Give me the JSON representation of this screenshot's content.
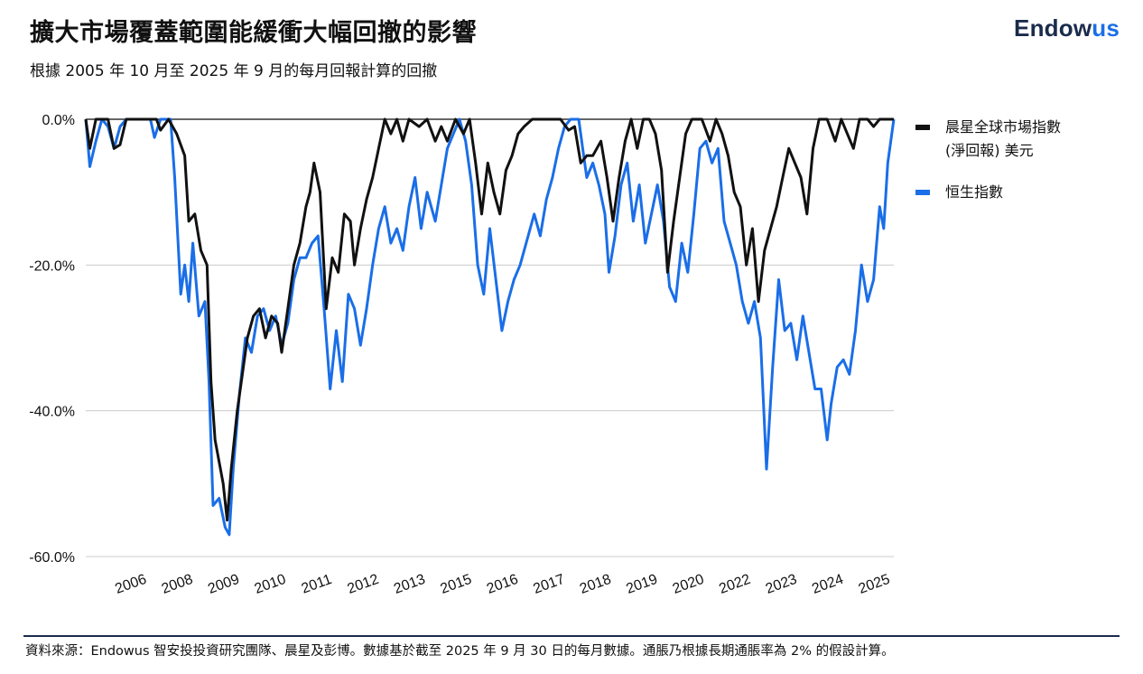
{
  "header": {
    "title": "擴大市場覆蓋範圍能緩衝大幅回撤的影響",
    "subtitle": "根據 2005 年 10 月至 2025 年 9 月的每月回報計算的回撤",
    "logo_main": "Endow",
    "logo_accent": "us"
  },
  "colors": {
    "series_global": "#111111",
    "series_hsi": "#1a6ee8",
    "gridline": "#cccccc",
    "logo_navy": "#1a2b4c"
  },
  "legend": {
    "global_line1": "晨星全球市場指數",
    "global_line2": "(淨回報) 美元",
    "hsi": "恒生指數"
  },
  "footer": {
    "source": "資料來源：Endowus 智安投投資研究團隊、晨星及彭博。數據基於截至 2025 年 9 月 30 日的每月數據。通脹乃根據長期通脹率為 2% 的假設計算。"
  },
  "chart_data": {
    "type": "line",
    "title": "擴大市場覆蓋範圍能緩衝大幅回撤的影響",
    "xlabel": "",
    "ylabel": "",
    "xlim": [
      2005.75,
      2025.75
    ],
    "ylim": [
      -60,
      0
    ],
    "y_ticks": [
      0,
      -20,
      -40,
      -60
    ],
    "y_tick_labels": [
      "0.0%",
      "-20.0%",
      "-40.0%",
      "-60.0%"
    ],
    "x_tick_labels": [
      "2006",
      "2008",
      "2009",
      "2010",
      "2011",
      "2012",
      "2013",
      "2015",
      "2016",
      "2017",
      "2018",
      "2019",
      "2020",
      "2022",
      "2023",
      "2024",
      "2025"
    ],
    "x_tick_positions": [
      2006.9,
      2008.05,
      2009.2,
      2010.35,
      2011.5,
      2012.65,
      2013.8,
      2014.95,
      2016.1,
      2017.25,
      2018.4,
      2019.55,
      2020.7,
      2021.85,
      2023.0,
      2024.15,
      2025.3
    ],
    "grid": "horizontal",
    "legend_position": "right",
    "series": [
      {
        "name": "晨星全球市場指數 (淨回報) 美元",
        "color": "#111111",
        "points": [
          [
            2005.75,
            0
          ],
          [
            2005.85,
            -4
          ],
          [
            2006.0,
            0
          ],
          [
            2006.3,
            0
          ],
          [
            2006.45,
            -4
          ],
          [
            2006.6,
            -3.5
          ],
          [
            2006.75,
            0
          ],
          [
            2007.5,
            0
          ],
          [
            2007.6,
            -1.5
          ],
          [
            2007.8,
            0
          ],
          [
            2008.0,
            -2
          ],
          [
            2008.2,
            -5
          ],
          [
            2008.3,
            -14
          ],
          [
            2008.45,
            -13
          ],
          [
            2008.6,
            -18
          ],
          [
            2008.75,
            -20
          ],
          [
            2008.85,
            -36
          ],
          [
            2008.95,
            -44
          ],
          [
            2009.05,
            -47
          ],
          [
            2009.15,
            -50
          ],
          [
            2009.25,
            -55
          ],
          [
            2009.35,
            -48
          ],
          [
            2009.5,
            -40
          ],
          [
            2009.6,
            -36
          ],
          [
            2009.75,
            -30
          ],
          [
            2009.9,
            -27
          ],
          [
            2010.05,
            -26
          ],
          [
            2010.2,
            -30
          ],
          [
            2010.35,
            -27
          ],
          [
            2010.5,
            -28
          ],
          [
            2010.6,
            -32
          ],
          [
            2010.75,
            -26
          ],
          [
            2010.9,
            -20
          ],
          [
            2011.05,
            -17
          ],
          [
            2011.2,
            -12
          ],
          [
            2011.3,
            -10
          ],
          [
            2011.4,
            -6
          ],
          [
            2011.55,
            -10
          ],
          [
            2011.7,
            -26
          ],
          [
            2011.85,
            -19
          ],
          [
            2012.0,
            -21
          ],
          [
            2012.15,
            -13
          ],
          [
            2012.3,
            -14
          ],
          [
            2012.4,
            -20
          ],
          [
            2012.55,
            -15
          ],
          [
            2012.7,
            -11
          ],
          [
            2012.85,
            -8
          ],
          [
            2013.0,
            -4
          ],
          [
            2013.15,
            0
          ],
          [
            2013.3,
            -2
          ],
          [
            2013.45,
            0
          ],
          [
            2013.6,
            -3
          ],
          [
            2013.75,
            0
          ],
          [
            2014.0,
            -1
          ],
          [
            2014.2,
            0
          ],
          [
            2014.4,
            -3
          ],
          [
            2014.55,
            -1
          ],
          [
            2014.7,
            -3
          ],
          [
            2014.9,
            0
          ],
          [
            2015.1,
            -2
          ],
          [
            2015.25,
            0
          ],
          [
            2015.4,
            -6
          ],
          [
            2015.55,
            -13
          ],
          [
            2015.7,
            -6
          ],
          [
            2015.85,
            -10
          ],
          [
            2016.0,
            -13
          ],
          [
            2016.15,
            -7
          ],
          [
            2016.3,
            -5
          ],
          [
            2016.45,
            -2
          ],
          [
            2016.6,
            -1
          ],
          [
            2016.8,
            0
          ],
          [
            2017.5,
            0
          ],
          [
            2017.7,
            -1.5
          ],
          [
            2017.85,
            -1
          ],
          [
            2018.0,
            -6
          ],
          [
            2018.15,
            -5
          ],
          [
            2018.3,
            -5
          ],
          [
            2018.5,
            -3
          ],
          [
            2018.65,
            -8
          ],
          [
            2018.8,
            -14
          ],
          [
            2018.95,
            -8
          ],
          [
            2019.1,
            -3
          ],
          [
            2019.25,
            0
          ],
          [
            2019.4,
            -4
          ],
          [
            2019.55,
            0
          ],
          [
            2019.7,
            0
          ],
          [
            2019.85,
            -2
          ],
          [
            2020.0,
            -7
          ],
          [
            2020.15,
            -21
          ],
          [
            2020.3,
            -14
          ],
          [
            2020.45,
            -8
          ],
          [
            2020.6,
            -2
          ],
          [
            2020.75,
            0
          ],
          [
            2021.0,
            0
          ],
          [
            2021.2,
            -3
          ],
          [
            2021.35,
            0
          ],
          [
            2021.5,
            -2
          ],
          [
            2021.65,
            -5
          ],
          [
            2021.8,
            -10
          ],
          [
            2021.95,
            -12
          ],
          [
            2022.1,
            -20
          ],
          [
            2022.25,
            -15
          ],
          [
            2022.4,
            -25
          ],
          [
            2022.55,
            -18
          ],
          [
            2022.7,
            -15
          ],
          [
            2022.85,
            -12
          ],
          [
            2023.0,
            -8
          ],
          [
            2023.15,
            -4
          ],
          [
            2023.3,
            -6
          ],
          [
            2023.45,
            -8
          ],
          [
            2023.6,
            -13
          ],
          [
            2023.75,
            -4
          ],
          [
            2023.9,
            0
          ],
          [
            2024.1,
            0
          ],
          [
            2024.3,
            -3
          ],
          [
            2024.45,
            0
          ],
          [
            2024.6,
            -2
          ],
          [
            2024.75,
            -4
          ],
          [
            2024.9,
            0
          ],
          [
            2025.1,
            0
          ],
          [
            2025.25,
            -1
          ],
          [
            2025.4,
            0
          ],
          [
            2025.75,
            0
          ]
        ]
      },
      {
        "name": "恒生指數",
        "color": "#1a6ee8",
        "points": [
          [
            2005.75,
            0
          ],
          [
            2005.85,
            -6.5
          ],
          [
            2006.0,
            -3
          ],
          [
            2006.15,
            0
          ],
          [
            2006.3,
            -1
          ],
          [
            2006.45,
            -4
          ],
          [
            2006.6,
            -1
          ],
          [
            2006.75,
            0
          ],
          [
            2007.35,
            0
          ],
          [
            2007.45,
            -2.5
          ],
          [
            2007.6,
            0
          ],
          [
            2007.85,
            0
          ],
          [
            2007.95,
            -8
          ],
          [
            2008.1,
            -24
          ],
          [
            2008.2,
            -20
          ],
          [
            2008.3,
            -25
          ],
          [
            2008.4,
            -17
          ],
          [
            2008.55,
            -27
          ],
          [
            2008.7,
            -25
          ],
          [
            2008.8,
            -36
          ],
          [
            2008.9,
            -53
          ],
          [
            2009.05,
            -52
          ],
          [
            2009.2,
            -56
          ],
          [
            2009.3,
            -57
          ],
          [
            2009.4,
            -48
          ],
          [
            2009.55,
            -38
          ],
          [
            2009.7,
            -30
          ],
          [
            2009.85,
            -32
          ],
          [
            2010.0,
            -27
          ],
          [
            2010.15,
            -26
          ],
          [
            2010.3,
            -29
          ],
          [
            2010.45,
            -27
          ],
          [
            2010.6,
            -31
          ],
          [
            2010.75,
            -28
          ],
          [
            2010.9,
            -22
          ],
          [
            2011.05,
            -19
          ],
          [
            2011.2,
            -19
          ],
          [
            2011.35,
            -17
          ],
          [
            2011.5,
            -16
          ],
          [
            2011.65,
            -26
          ],
          [
            2011.8,
            -37
          ],
          [
            2011.95,
            -29
          ],
          [
            2012.1,
            -36
          ],
          [
            2012.25,
            -24
          ],
          [
            2012.4,
            -26
          ],
          [
            2012.55,
            -31
          ],
          [
            2012.7,
            -26
          ],
          [
            2012.85,
            -20
          ],
          [
            2013.0,
            -15
          ],
          [
            2013.15,
            -12
          ],
          [
            2013.3,
            -17
          ],
          [
            2013.45,
            -15
          ],
          [
            2013.6,
            -18
          ],
          [
            2013.75,
            -12
          ],
          [
            2013.9,
            -8
          ],
          [
            2014.05,
            -15
          ],
          [
            2014.2,
            -10
          ],
          [
            2014.4,
            -14
          ],
          [
            2014.55,
            -9
          ],
          [
            2014.7,
            -4
          ],
          [
            2014.85,
            -2
          ],
          [
            2015.0,
            0
          ],
          [
            2015.15,
            -3
          ],
          [
            2015.3,
            -9
          ],
          [
            2015.45,
            -20
          ],
          [
            2015.6,
            -24
          ],
          [
            2015.75,
            -15
          ],
          [
            2015.9,
            -22
          ],
          [
            2016.05,
            -29
          ],
          [
            2016.2,
            -25
          ],
          [
            2016.35,
            -22
          ],
          [
            2016.5,
            -20
          ],
          [
            2016.7,
            -16
          ],
          [
            2016.85,
            -13
          ],
          [
            2017.0,
            -16
          ],
          [
            2017.15,
            -11
          ],
          [
            2017.3,
            -8
          ],
          [
            2017.45,
            -4
          ],
          [
            2017.6,
            -1
          ],
          [
            2017.75,
            0
          ],
          [
            2017.95,
            0
          ],
          [
            2018.05,
            -4
          ],
          [
            2018.15,
            -8
          ],
          [
            2018.3,
            -6
          ],
          [
            2018.45,
            -9
          ],
          [
            2018.6,
            -13
          ],
          [
            2018.7,
            -21
          ],
          [
            2018.85,
            -16
          ],
          [
            2019.0,
            -9
          ],
          [
            2019.15,
            -6
          ],
          [
            2019.3,
            -14
          ],
          [
            2019.45,
            -9
          ],
          [
            2019.6,
            -17
          ],
          [
            2019.75,
            -13
          ],
          [
            2019.9,
            -9
          ],
          [
            2020.05,
            -14
          ],
          [
            2020.2,
            -23
          ],
          [
            2020.35,
            -25
          ],
          [
            2020.5,
            -17
          ],
          [
            2020.65,
            -21
          ],
          [
            2020.8,
            -13
          ],
          [
            2020.95,
            -4
          ],
          [
            2021.1,
            -3
          ],
          [
            2021.25,
            -6
          ],
          [
            2021.4,
            -4
          ],
          [
            2021.55,
            -14
          ],
          [
            2021.7,
            -17
          ],
          [
            2021.85,
            -20
          ],
          [
            2022.0,
            -25
          ],
          [
            2022.15,
            -28
          ],
          [
            2022.3,
            -25
          ],
          [
            2022.45,
            -30
          ],
          [
            2022.6,
            -48
          ],
          [
            2022.75,
            -34
          ],
          [
            2022.9,
            -22
          ],
          [
            2023.05,
            -29
          ],
          [
            2023.2,
            -28
          ],
          [
            2023.35,
            -33
          ],
          [
            2023.5,
            -27
          ],
          [
            2023.65,
            -32
          ],
          [
            2023.8,
            -37
          ],
          [
            2023.95,
            -37
          ],
          [
            2024.1,
            -44
          ],
          [
            2024.2,
            -39
          ],
          [
            2024.35,
            -34
          ],
          [
            2024.5,
            -33
          ],
          [
            2024.65,
            -35
          ],
          [
            2024.8,
            -29
          ],
          [
            2024.95,
            -20
          ],
          [
            2025.1,
            -25
          ],
          [
            2025.25,
            -22
          ],
          [
            2025.4,
            -12
          ],
          [
            2025.5,
            -15
          ],
          [
            2025.6,
            -6
          ],
          [
            2025.75,
            0
          ]
        ]
      }
    ]
  }
}
